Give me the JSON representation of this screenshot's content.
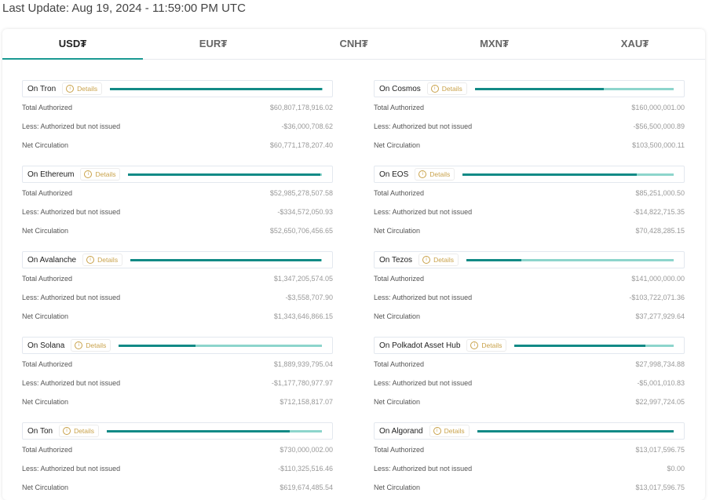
{
  "header": {
    "last_update": "Last Update: Aug 19, 2024 - 11:59:00 PM UTC"
  },
  "tabs": [
    "USD₮",
    "EUR₮",
    "CNH₮",
    "MXN₮",
    "XAU₮"
  ],
  "details_label": "Details",
  "row_labels": [
    "Total Authorized",
    "Less: Authorized but not issued",
    "Net Circulation"
  ],
  "columns": [
    [
      {
        "name": "On Tron",
        "values": [
          "$60,807,178,916.02",
          "-$36,000,708.62",
          "$60,771,178,207.40"
        ]
      },
      {
        "name": "On Ethereum",
        "values": [
          "$52,985,278,507.58",
          "-$334,572,050.93",
          "$52,650,706,456.65"
        ]
      },
      {
        "name": "On Avalanche",
        "values": [
          "$1,347,205,574.05",
          "-$3,558,707.90",
          "$1,343,646,866.15"
        ]
      },
      {
        "name": "On Solana",
        "values": [
          "$1,889,939,795.04",
          "-$1,177,780,977.97",
          "$712,158,817.07"
        ]
      },
      {
        "name": "On Ton",
        "values": [
          "$730,000,002.00",
          "-$110,325,516.46",
          "$619,674,485.54"
        ]
      }
    ],
    [
      {
        "name": "On Cosmos",
        "values": [
          "$160,000,001.00",
          "-$56,500,000.89",
          "$103,500,000.11"
        ]
      },
      {
        "name": "On EOS",
        "values": [
          "$85,251,000.50",
          "-$14,822,715.35",
          "$70,428,285.15"
        ]
      },
      {
        "name": "On Tezos",
        "values": [
          "$141,000,000.00",
          "-$103,722,071.36",
          "$37,277,929.64"
        ]
      },
      {
        "name": "On Polkadot Asset Hub",
        "values": [
          "$27,998,734.88",
          "-$5,001,010.83",
          "$22,997,724.05"
        ]
      },
      {
        "name": "On Algorand",
        "values": [
          "$13,017,596.75",
          "$0.00",
          "$13,017,596.75"
        ]
      }
    ]
  ]
}
